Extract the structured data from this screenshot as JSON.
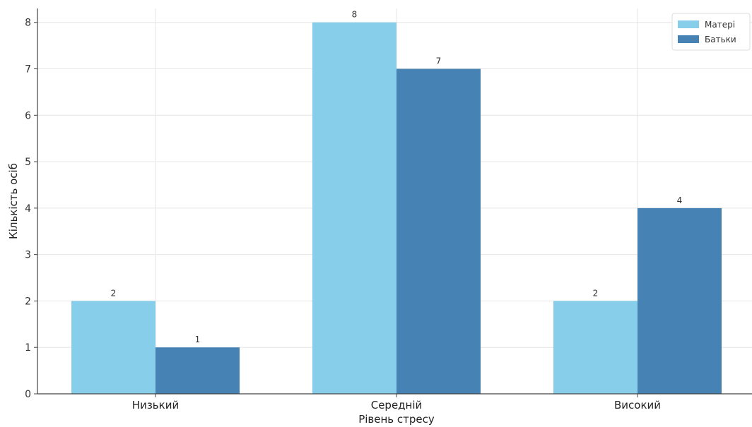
{
  "chart_data": {
    "type": "bar",
    "categories": [
      "Низький",
      "Середній",
      "Високий"
    ],
    "series": [
      {
        "name": "Матері",
        "values": [
          2,
          8,
          2
        ],
        "color": "#87CEEB"
      },
      {
        "name": "Батьки",
        "values": [
          1,
          7,
          4
        ],
        "color": "#4682B4"
      }
    ],
    "xlabel": "Рівень стресу",
    "ylabel": "Кількість осіб",
    "ylim": [
      0,
      8.3
    ],
    "yticks": [
      "0",
      "1",
      "2",
      "3",
      "4",
      "5",
      "6",
      "7",
      "8"
    ],
    "grid": true,
    "legend_position": "top-right"
  }
}
